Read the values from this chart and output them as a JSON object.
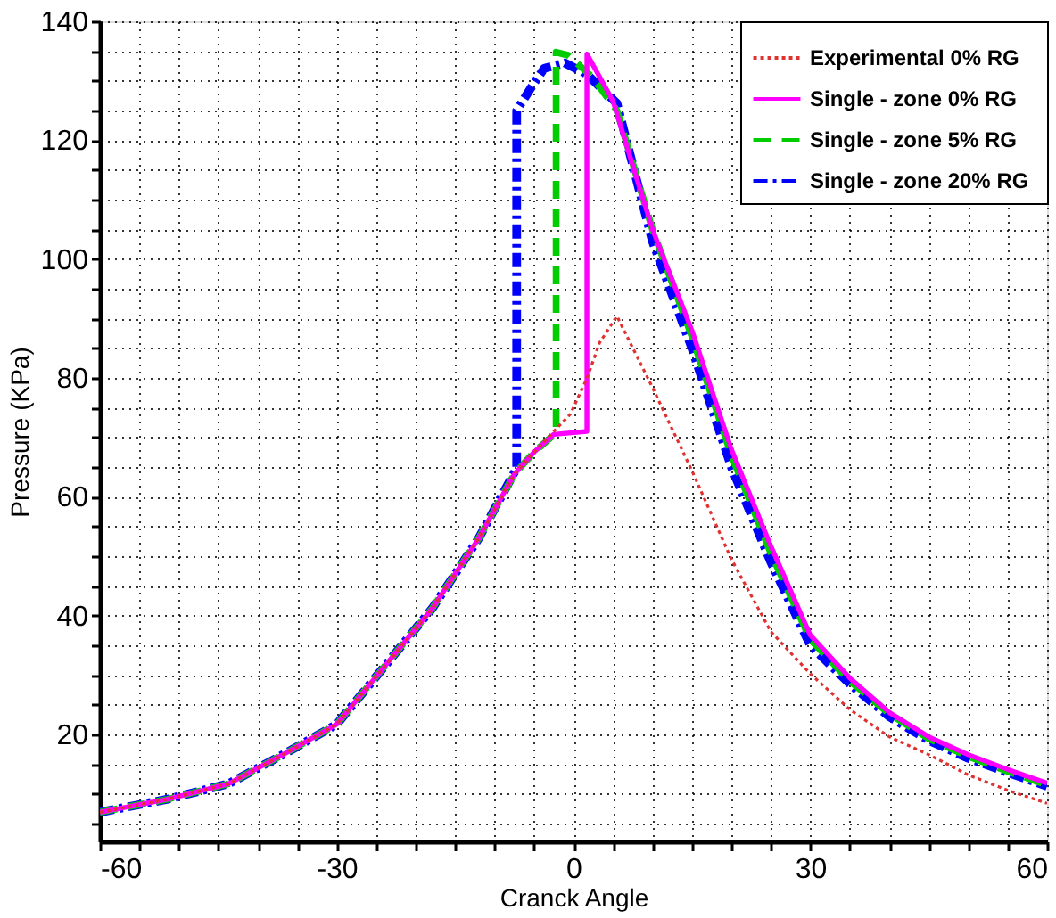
{
  "chart_data": {
    "type": "line",
    "xlabel": "Cranck Angle",
    "ylabel": "Pressure (KPa)",
    "xlim": [
      -60,
      60
    ],
    "ylim": [
      2,
      140
    ],
    "xticks": [
      -60,
      {
        "value": -55,
        "label": null
      },
      {
        "value": -50,
        "label": null
      },
      {
        "value": -45,
        "label": null
      },
      {
        "value": -40,
        "label": null
      },
      {
        "value": -35,
        "label": null
      },
      -30,
      {
        "value": -25,
        "label": null
      },
      {
        "value": -20,
        "label": null
      },
      {
        "value": -15,
        "label": null
      },
      {
        "value": -10,
        "label": null
      },
      {
        "value": -5,
        "label": null
      },
      0,
      {
        "value": 5,
        "label": null
      },
      {
        "value": 10,
        "label": null
      },
      {
        "value": 15,
        "label": null
      },
      {
        "value": 20,
        "label": null
      },
      {
        "value": 25,
        "label": null
      },
      30,
      {
        "value": 35,
        "label": null
      },
      {
        "value": 40,
        "label": null
      },
      {
        "value": 45,
        "label": null
      },
      {
        "value": 50,
        "label": null
      },
      {
        "value": 55,
        "label": null
      },
      60
    ],
    "yticks": [
      {
        "value": 5,
        "label": null
      },
      {
        "value": 10,
        "label": null
      },
      {
        "value": 15,
        "label": null
      },
      20,
      {
        "value": 25,
        "label": null
      },
      {
        "value": 30,
        "label": null
      },
      {
        "value": 35,
        "label": null
      },
      40,
      {
        "value": 45,
        "label": null
      },
      {
        "value": 50,
        "label": null
      },
      {
        "value": 55,
        "label": null
      },
      60,
      {
        "value": 65,
        "label": null
      },
      {
        "value": 70,
        "label": null
      },
      {
        "value": 75,
        "label": null
      },
      80,
      {
        "value": 85,
        "label": null
      },
      {
        "value": 90,
        "label": null
      },
      {
        "value": 95,
        "label": null
      },
      100,
      {
        "value": 105,
        "label": null
      },
      {
        "value": 110,
        "label": null
      },
      {
        "value": 115,
        "label": null
      },
      120,
      {
        "value": 125,
        "label": null
      },
      {
        "value": 130,
        "label": null
      },
      {
        "value": 135,
        "label": null
      },
      140
    ],
    "grid": true,
    "legend": "top right",
    "marker": "none",
    "series": [
      {
        "name": "Experimental 0% RG",
        "color": "#e03030",
        "line_style": "dotted",
        "x": [
          -60,
          -51.4,
          -43.7,
          -36.8,
          -30,
          -24.4,
          -17.9,
          -12.1,
          -7.5,
          -5,
          -2.2,
          -0.4,
          1.7,
          3.3,
          5.5,
          10,
          15,
          20,
          25,
          30,
          35,
          40,
          45,
          50,
          55,
          60
        ],
        "values": [
          6.9,
          9.1,
          11.7,
          16.6,
          21.7,
          30.7,
          41.2,
          52.8,
          63.8,
          67.5,
          71.4,
          73.9,
          79.9,
          85.9,
          90.4,
          78.4,
          64.4,
          49.5,
          37.3,
          30.2,
          24.2,
          19.6,
          16.6,
          13.2,
          10.6,
          8.4
        ]
      },
      {
        "name": "Single - zone  0% RG",
        "color": "#ff00ff",
        "line_style": "solid",
        "x": [
          -60,
          -51.4,
          -43.7,
          -36.8,
          -30,
          -24.4,
          -17.9,
          -12.1,
          -7.5,
          -5,
          -2.5,
          1.7,
          1.7,
          5,
          10,
          15,
          20,
          25,
          30,
          35,
          40,
          45,
          50,
          55,
          60
        ],
        "values": [
          6.9,
          9.1,
          11.7,
          16.6,
          21.7,
          30.7,
          41.2,
          52.8,
          63.8,
          67.5,
          70.5,
          71,
          134.5,
          126.6,
          105,
          88,
          68,
          51.7,
          36.7,
          29.5,
          23.7,
          19.6,
          16.6,
          14.1,
          11.8
        ]
      },
      {
        "name": "Single - zone  5% RG",
        "color": "#00cc00",
        "line_style": "dashed",
        "x": [
          -60,
          -51.4,
          -43.7,
          -36.8,
          -30,
          -24.4,
          -17.9,
          -12.1,
          -7.5,
          -5,
          -2.2,
          -2.2,
          -0.7,
          2.4,
          5.5,
          10,
          15,
          20,
          25,
          30,
          35,
          40,
          45,
          50,
          55,
          60
        ],
        "values": [
          6.9,
          9.1,
          11.7,
          16.6,
          21.7,
          30.7,
          41.2,
          52.8,
          63.8,
          67.5,
          70.8,
          134.8,
          134.3,
          130.6,
          125,
          105,
          87,
          67,
          50.5,
          36,
          29,
          23.5,
          19.3,
          16.3,
          13.8,
          11.5
        ]
      },
      {
        "name": "Single - zone  20% RG",
        "color": "#0000ff",
        "line_style": "dashdot",
        "x": [
          -60,
          -51.4,
          -43.7,
          -36.8,
          -30,
          -24.4,
          -17.9,
          -12.1,
          -7.2,
          -7.2,
          -5.3,
          -3.7,
          -1.1,
          1.7,
          5.5,
          10,
          15,
          20,
          25,
          30,
          35,
          40,
          45,
          50,
          55,
          60
        ],
        "values": [
          6.9,
          9.1,
          11.7,
          16.6,
          21.7,
          30.7,
          41.2,
          52.8,
          64.8,
          125,
          129,
          132.1,
          133,
          131.1,
          126.2,
          103,
          85,
          65,
          49,
          35,
          28.5,
          23,
          19,
          16,
          13.6,
          11.3
        ]
      }
    ]
  }
}
